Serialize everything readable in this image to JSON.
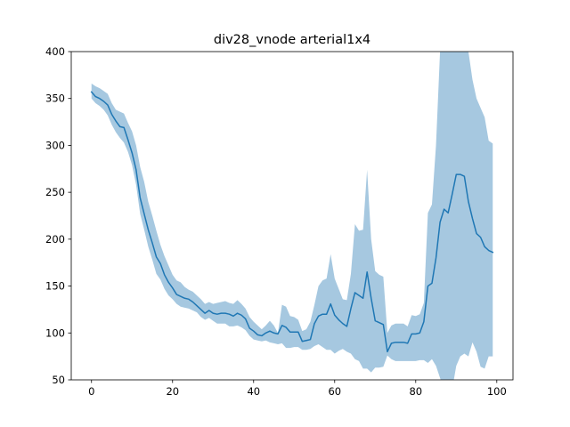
{
  "chart_data": {
    "type": "line",
    "title": "div28_vnode arterial1x4",
    "xlabel": "",
    "ylabel": "",
    "xlim": [
      -5,
      104
    ],
    "ylim": [
      50,
      400
    ],
    "xticks": [
      0,
      20,
      40,
      60,
      80,
      100
    ],
    "yticks": [
      50,
      100,
      150,
      200,
      250,
      300,
      350,
      400
    ],
    "grid": false,
    "colors": {
      "line": "#1f77b4",
      "band": "#a6c8e0"
    },
    "series": [
      {
        "x": [
          0,
          1,
          2,
          3,
          4,
          5,
          6,
          7,
          8,
          9,
          10,
          11,
          12,
          13,
          14,
          15,
          16,
          17,
          18,
          19,
          20,
          21,
          22,
          23,
          24,
          25,
          26,
          27,
          28,
          29,
          30,
          31,
          32,
          33,
          34,
          35,
          36,
          37,
          38,
          39,
          40,
          41,
          42,
          43,
          44,
          45,
          46,
          47,
          48,
          49,
          50,
          51,
          52,
          53,
          54,
          55,
          56,
          57,
          58,
          59,
          60,
          61,
          62,
          63,
          64,
          65,
          66,
          67,
          68,
          69,
          70,
          71,
          72,
          73,
          74,
          75,
          76,
          77,
          78,
          79,
          80,
          81,
          82,
          83,
          84,
          85,
          86,
          87,
          88,
          89,
          90,
          91,
          92,
          93,
          94,
          95,
          96,
          97,
          98,
          99
        ],
        "mean": [
          357,
          352,
          350,
          347,
          343,
          333,
          326,
          320,
          319,
          306,
          292,
          274,
          244,
          227,
          210,
          196,
          181,
          174,
          162,
          154,
          148,
          141,
          139,
          137,
          136,
          133,
          129,
          125,
          121,
          124,
          121,
          120,
          121,
          121,
          120,
          118,
          121,
          119,
          115,
          105,
          102,
          98,
          97,
          100,
          102,
          100,
          99,
          108,
          106,
          101,
          101,
          101,
          91,
          92,
          93,
          110,
          118,
          120,
          120,
          131,
          119,
          114,
          110,
          107,
          126,
          143,
          140,
          137,
          165,
          137,
          113,
          111,
          109,
          80,
          89,
          90,
          90,
          90,
          89,
          99,
          99,
          100,
          112,
          150,
          153,
          180,
          218,
          232,
          228,
          248,
          269,
          269,
          267,
          240,
          222,
          206,
          202,
          192,
          188,
          186
        ],
        "upper": [
          366,
          363,
          361,
          358,
          355,
          345,
          338,
          336,
          334,
          324,
          315,
          300,
          277,
          261,
          240,
          225,
          209,
          194,
          182,
          172,
          162,
          156,
          154,
          149,
          146,
          144,
          140,
          136,
          131,
          133,
          131,
          132,
          133,
          134,
          132,
          131,
          135,
          131,
          126,
          117,
          112,
          108,
          104,
          108,
          113,
          108,
          100,
          130,
          128,
          118,
          117,
          114,
          102,
          104,
          112,
          130,
          150,
          156,
          158,
          184,
          158,
          147,
          136,
          135,
          163,
          216,
          209,
          210,
          274,
          200,
          166,
          162,
          160,
          100,
          108,
          110,
          110,
          110,
          107,
          119,
          118,
          120,
          132,
          228,
          237,
          300,
          400,
          400,
          400,
          400,
          400,
          400,
          400,
          400,
          370,
          350,
          340,
          330,
          305,
          302
        ],
        "lower": [
          350,
          345,
          342,
          338,
          332,
          322,
          314,
          308,
          303,
          293,
          279,
          258,
          227,
          210,
          192,
          178,
          163,
          157,
          147,
          140,
          136,
          131,
          128,
          127,
          126,
          124,
          122,
          117,
          114,
          116,
          113,
          110,
          110,
          110,
          107,
          107,
          108,
          106,
          103,
          97,
          93,
          92,
          91,
          92,
          90,
          89,
          88,
          89,
          84,
          84,
          85,
          85,
          82,
          82,
          83,
          86,
          88,
          85,
          82,
          82,
          78,
          81,
          83,
          80,
          78,
          72,
          70,
          62,
          62,
          58,
          63,
          63,
          64,
          76,
          72,
          70,
          70,
          70,
          70,
          70,
          70,
          71,
          71,
          68,
          72,
          65,
          52,
          40,
          30,
          40,
          65,
          75,
          78,
          75,
          90,
          80,
          64,
          62,
          75,
          75
        ]
      }
    ]
  }
}
